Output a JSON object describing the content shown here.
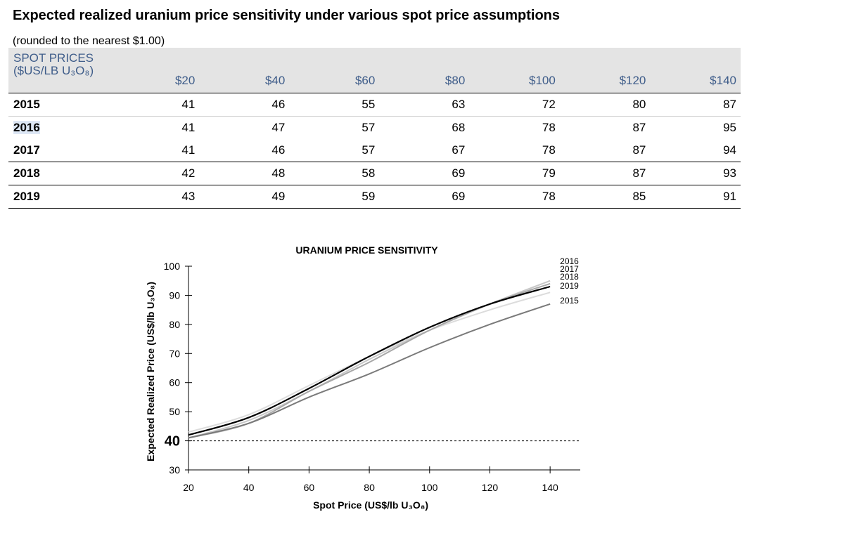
{
  "table": {
    "title": "Expected realized uranium price sensitivity under various spot price assumptions",
    "subtitle": "(rounded to the nearest $1.00)",
    "header_label_line1": "SPOT PRICES",
    "header_label_line2": "($US/LB U₃O₈)",
    "columns": [
      "$20",
      "$40",
      "$60",
      "$80",
      "$100",
      "$120",
      "$140"
    ],
    "rows": [
      {
        "year": "2015",
        "values": [
          "41",
          "46",
          "55",
          "63",
          "72",
          "80",
          "87"
        ]
      },
      {
        "year": "2016",
        "values": [
          "41",
          "47",
          "57",
          "68",
          "78",
          "87",
          "95"
        ]
      },
      {
        "year": "2017",
        "values": [
          "41",
          "46",
          "57",
          "67",
          "78",
          "87",
          "94"
        ]
      },
      {
        "year": "2018",
        "values": [
          "42",
          "48",
          "58",
          "69",
          "79",
          "87",
          "93"
        ]
      },
      {
        "year": "2019",
        "values": [
          "43",
          "49",
          "59",
          "69",
          "78",
          "85",
          "91"
        ]
      }
    ]
  },
  "chart_data": {
    "type": "line",
    "title": "URANIUM PRICE SENSITIVITY",
    "xlabel": "Spot Price (US$/lb U₃O₈)",
    "ylabel": "Expected Realized Price (US$/lb U₃O₈)",
    "x": [
      20,
      40,
      60,
      80,
      100,
      120,
      140
    ],
    "xlim": [
      20,
      150
    ],
    "ylim": [
      30,
      100
    ],
    "xticks": [
      20,
      40,
      60,
      80,
      100,
      120,
      140
    ],
    "yticks": [
      30,
      40,
      50,
      60,
      70,
      80,
      90,
      100
    ],
    "reference_line": {
      "y": 40,
      "style": "dashed"
    },
    "legend": [
      "2016",
      "2017",
      "2018",
      "2019",
      "2015"
    ],
    "series": [
      {
        "name": "2015",
        "values": [
          41,
          46,
          55,
          63,
          72,
          80,
          87
        ],
        "color": "#7a7a7a"
      },
      {
        "name": "2016",
        "values": [
          41,
          47,
          57,
          68,
          78,
          87,
          95
        ],
        "color": "#c8c8c8"
      },
      {
        "name": "2017",
        "values": [
          41,
          46,
          57,
          67,
          78,
          87,
          94
        ],
        "color": "#a8a8a8"
      },
      {
        "name": "2018",
        "values": [
          42,
          48,
          58,
          69,
          79,
          87,
          93
        ],
        "color": "#000000"
      },
      {
        "name": "2019",
        "values": [
          43,
          49,
          59,
          69,
          78,
          85,
          91
        ],
        "color": "#dcdcdc"
      }
    ]
  }
}
